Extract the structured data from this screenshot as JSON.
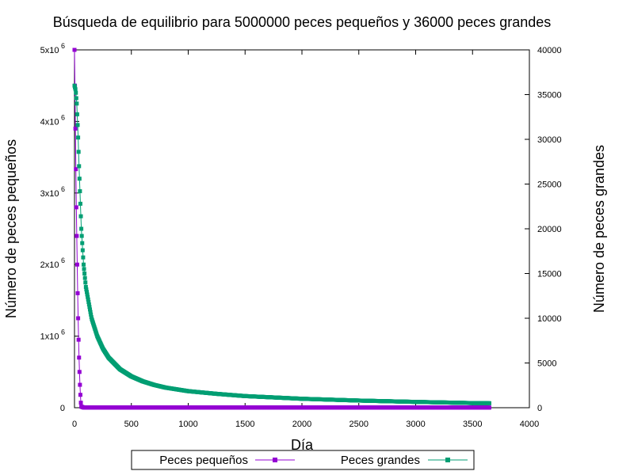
{
  "chart_data": {
    "type": "line",
    "title": "Búsqueda de equilibrio para 5000000 peces pequeños y 36000 peces grandes",
    "xlabel": "Día",
    "ylabel_left": "Número de peces pequeños",
    "ylabel_right": "Número de peces grandes",
    "xlim": [
      0,
      4000
    ],
    "ylim_left": [
      0,
      5000000
    ],
    "ylim_right": [
      0,
      40000
    ],
    "x_ticks": [
      0,
      500,
      1000,
      1500,
      2000,
      2500,
      3000,
      3500,
      4000
    ],
    "y_left_ticks": [
      {
        "value": 0,
        "mantissa": "0",
        "base": "",
        "exp": ""
      },
      {
        "value": 1000000,
        "mantissa": "1",
        "base": "x10",
        "exp": "6"
      },
      {
        "value": 2000000,
        "mantissa": "2",
        "base": "x10",
        "exp": "6"
      },
      {
        "value": 3000000,
        "mantissa": "3",
        "base": "x10",
        "exp": "6"
      },
      {
        "value": 4000000,
        "mantissa": "4",
        "base": "x10",
        "exp": "6"
      },
      {
        "value": 5000000,
        "mantissa": "5",
        "base": "x10",
        "exp": "6"
      }
    ],
    "y_right_ticks": [
      0,
      5000,
      10000,
      15000,
      20000,
      25000,
      30000,
      35000,
      40000
    ],
    "grid": false,
    "legend_position": "bottom-center",
    "series": [
      {
        "name": "Peces pequeños",
        "axis": "left",
        "color": "#9400d3",
        "marker": "square",
        "x": [
          0,
          2,
          4,
          6,
          8,
          10,
          13,
          16,
          20,
          24,
          28,
          32,
          36,
          40,
          44,
          48,
          52,
          56,
          60,
          80,
          200,
          500,
          1000,
          2000,
          3000,
          3650
        ],
        "y": [
          5000000,
          4800000,
          4500000,
          4200000,
          3900000,
          3600000,
          3200000,
          2800000,
          2400000,
          2000000,
          1600000,
          1250000,
          950000,
          700000,
          500000,
          320000,
          180000,
          70000,
          15000,
          3000,
          2000,
          2000,
          2000,
          2000,
          2000,
          2000
        ]
      },
      {
        "name": "Peces grandes",
        "axis": "right",
        "color": "#009e73",
        "marker": "square",
        "x": [
          0,
          10,
          20,
          30,
          40,
          50,
          60,
          80,
          100,
          150,
          200,
          250,
          300,
          400,
          500,
          600,
          700,
          800,
          1000,
          1250,
          1500,
          2000,
          2500,
          3000,
          3500,
          3650
        ],
        "y": [
          36000,
          35500,
          34000,
          31000,
          27000,
          23500,
          20000,
          16000,
          13500,
          10000,
          8000,
          6600,
          5600,
          4300,
          3500,
          2950,
          2550,
          2250,
          1850,
          1550,
          1300,
          1000,
          800,
          650,
          520,
          500
        ]
      }
    ]
  }
}
